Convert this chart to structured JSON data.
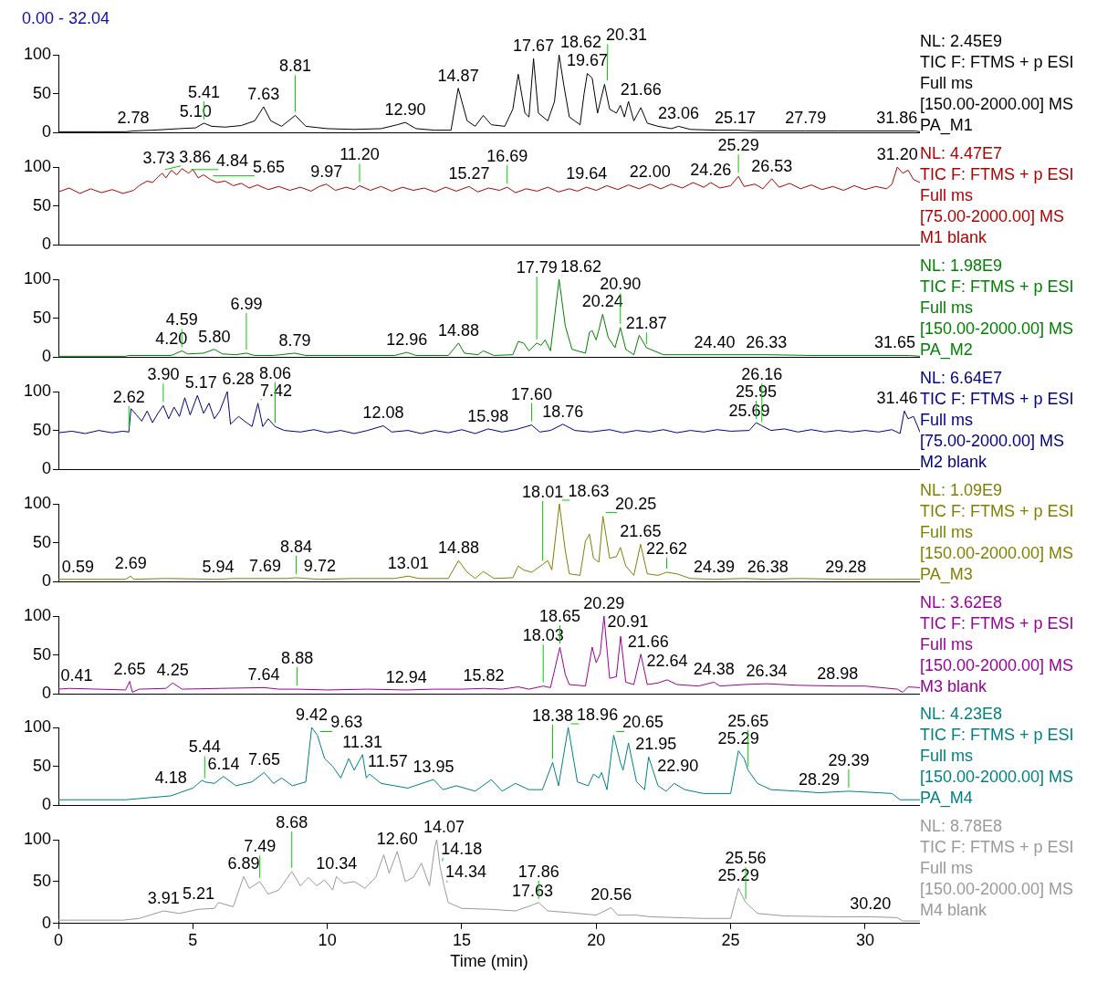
{
  "chart_data": [
    {
      "type": "line",
      "title": "0.00 - 32.04",
      "color": "#000000",
      "xlim": [
        0,
        32.04
      ],
      "ylim": [
        0,
        100
      ],
      "yticks": [
        0,
        50,
        100
      ],
      "tick_labels": "y",
      "x": [
        0,
        1.5,
        2.5,
        2.78,
        3.5,
        4.5,
        5.1,
        5.41,
        5.7,
        6.2,
        6.8,
        7.3,
        7.63,
        7.9,
        8.3,
        8.81,
        9.2,
        10,
        11,
        12,
        12.6,
        12.9,
        13.3,
        14,
        14.6,
        14.87,
        15.2,
        15.5,
        15.8,
        16.1,
        16.6,
        16.9,
        17.1,
        17.35,
        17.5,
        17.67,
        17.85,
        18.2,
        18.45,
        18.62,
        18.8,
        19.0,
        19.2,
        19.4,
        19.55,
        19.67,
        19.85,
        20.05,
        20.31,
        20.5,
        20.75,
        20.9,
        21.05,
        21.2,
        21.4,
        21.66,
        21.9,
        22.3,
        22.8,
        23.06,
        23.5,
        24.5,
        25.17,
        26,
        27.79,
        29,
        30,
        31.86,
        32.04
      ],
      "values": [
        1,
        1,
        1,
        2,
        3,
        5,
        6,
        12,
        8,
        7,
        9,
        15,
        33,
        15,
        8,
        22,
        8,
        5,
        4,
        5,
        10,
        13,
        5,
        3,
        3,
        57,
        15,
        8,
        22,
        10,
        8,
        30,
        75,
        25,
        20,
        95,
        25,
        15,
        40,
        100,
        60,
        20,
        15,
        10,
        50,
        76,
        70,
        25,
        62,
        30,
        25,
        35,
        20,
        40,
        15,
        32,
        12,
        8,
        5,
        8,
        4,
        3,
        3,
        2,
        2,
        2,
        2,
        2,
        1
      ],
      "annotations": [
        "NL: 2.45E9",
        "TIC F: FTMS + p ESI",
        "Full ms",
        "[150.00-2000.00]  MS",
        "PA_M1",
        {
          "text": "2.78",
          "x": 2.78,
          "y": 2
        },
        {
          "text": "5.10",
          "x": 5.1,
          "y": 6
        },
        {
          "text": "5.41",
          "x": 5.41,
          "y": 12
        },
        {
          "text": "7.63",
          "x": 7.63,
          "y": 33
        },
        {
          "text": "8.81",
          "x": 8.81,
          "y": 22
        },
        {
          "text": "12.90",
          "x": 12.9,
          "y": 13
        },
        {
          "text": "14.87",
          "x": 14.87,
          "y": 57
        },
        {
          "text": "17.67",
          "x": 17.67,
          "y": 95
        },
        {
          "text": "18.62",
          "x": 18.62,
          "y": 100
        },
        {
          "text": "19.67",
          "x": 19.67,
          "y": 76
        },
        {
          "text": "20.31",
          "x": 20.31,
          "y": 62
        },
        {
          "text": "21.66",
          "x": 21.66,
          "y": 32
        },
        {
          "text": "23.06",
          "x": 23.06,
          "y": 8
        },
        {
          "text": "25.17",
          "x": 25.17,
          "y": 3
        },
        {
          "text": "27.79",
          "x": 27.79,
          "y": 2
        },
        {
          "text": "31.86",
          "x": 31.86,
          "y": 2
        }
      ]
    },
    {
      "type": "line",
      "color": "#b00000",
      "xlim": [
        0,
        32.04
      ],
      "ylim": [
        0,
        100
      ],
      "yticks": [
        0,
        50,
        100
      ],
      "tick_labels": "y",
      "x": [
        0,
        0.4,
        0.8,
        1.2,
        1.6,
        2.0,
        2.4,
        2.8,
        3.0,
        3.3,
        3.5,
        3.73,
        3.86,
        4.0,
        4.2,
        4.4,
        4.6,
        4.84,
        5.0,
        5.2,
        5.4,
        5.65,
        5.9,
        6.2,
        6.5,
        6.8,
        7.1,
        7.4,
        7.8,
        8.2,
        8.6,
        9.0,
        9.4,
        9.7,
        9.97,
        10.3,
        10.7,
        11.0,
        11.2,
        11.6,
        12.0,
        12.4,
        12.8,
        13.2,
        13.6,
        14.0,
        14.4,
        14.8,
        15.27,
        15.6,
        16.0,
        16.4,
        16.69,
        17.0,
        17.4,
        17.8,
        18.2,
        18.6,
        19.0,
        19.3,
        19.64,
        20.0,
        20.4,
        20.8,
        21.2,
        21.6,
        22.0,
        22.4,
        22.8,
        23.2,
        23.6,
        24.0,
        24.26,
        24.6,
        25.0,
        25.29,
        25.5,
        25.9,
        26.2,
        26.53,
        26.8,
        27.2,
        27.6,
        28.0,
        28.4,
        28.8,
        29.2,
        29.6,
        30.0,
        30.4,
        30.8,
        31.0,
        31.2,
        31.4,
        31.6,
        31.8,
        32.04
      ],
      "values": [
        68,
        73,
        66,
        72,
        67,
        71,
        66,
        70,
        76,
        82,
        80,
        88,
        92,
        86,
        96,
        90,
        98,
        92,
        97,
        86,
        90,
        84,
        80,
        82,
        76,
        79,
        73,
        77,
        71,
        75,
        70,
        74,
        69,
        75,
        78,
        70,
        74,
        71,
        76,
        70,
        75,
        69,
        74,
        70,
        73,
        68,
        74,
        69,
        75,
        68,
        73,
        70,
        74,
        67,
        72,
        69,
        74,
        68,
        72,
        69,
        74,
        70,
        76,
        71,
        77,
        72,
        78,
        72,
        78,
        73,
        80,
        74,
        80,
        73,
        76,
        88,
        75,
        78,
        72,
        85,
        74,
        79,
        72,
        77,
        71,
        75,
        70,
        76,
        71,
        75,
        72,
        78,
        100,
        92,
        96,
        84,
        80
      ],
      "annotations": [
        "NL: 4.47E7",
        "TIC F: FTMS + p ESI",
        "Full ms",
        "[75.00-2000.00]  MS",
        "M1 blank",
        {
          "text": "3.73",
          "x": 3.73,
          "y": 88
        },
        {
          "text": "3.86",
          "x": 3.86,
          "y": 92
        },
        {
          "text": "4.84",
          "x": 4.84,
          "y": 92
        },
        {
          "text": "5.65",
          "x": 5.65,
          "y": 84
        },
        {
          "text": "9.97",
          "x": 9.97,
          "y": 78
        },
        {
          "text": "11.20",
          "x": 11.2,
          "y": 76
        },
        {
          "text": "15.27",
          "x": 15.27,
          "y": 75
        },
        {
          "text": "16.69",
          "x": 16.69,
          "y": 74
        },
        {
          "text": "19.64",
          "x": 19.64,
          "y": 74
        },
        {
          "text": "22.00",
          "x": 22.0,
          "y": 78
        },
        {
          "text": "24.26",
          "x": 24.26,
          "y": 80
        },
        {
          "text": "25.29",
          "x": 25.29,
          "y": 88
        },
        {
          "text": "26.53",
          "x": 26.53,
          "y": 85
        },
        {
          "text": "31.20",
          "x": 31.2,
          "y": 100
        }
      ]
    },
    {
      "type": "line",
      "color": "#008000",
      "xlim": [
        0,
        32.04
      ],
      "ylim": [
        0,
        100
      ],
      "yticks": [
        0,
        50,
        100
      ],
      "tick_labels": "y",
      "x": [
        0,
        2.5,
        2.6,
        4.2,
        4.59,
        4.8,
        5.4,
        5.8,
        6.1,
        6.6,
        6.99,
        7.3,
        8.0,
        8.79,
        9.2,
        10.5,
        12.5,
        12.96,
        13.3,
        14.5,
        14.88,
        15.1,
        15.6,
        15.8,
        16.2,
        16.9,
        17.1,
        17.3,
        17.5,
        17.79,
        17.95,
        18.1,
        18.3,
        18.62,
        18.85,
        19.1,
        19.6,
        19.75,
        19.85,
        20.0,
        20.1,
        20.24,
        20.45,
        20.7,
        20.9,
        21.1,
        21.4,
        21.6,
        21.87,
        22.5,
        24.4,
        26.33,
        28,
        31.65,
        32.04
      ],
      "values": [
        1,
        1,
        2,
        2,
        8,
        4,
        5,
        10,
        4,
        3,
        5,
        2,
        2,
        5,
        2,
        2,
        2,
        6,
        2,
        2,
        18,
        5,
        3,
        8,
        2,
        3,
        20,
        18,
        8,
        18,
        15,
        22,
        8,
        100,
        40,
        10,
        5,
        32,
        34,
        22,
        35,
        55,
        25,
        12,
        38,
        10,
        3,
        28,
        12,
        3,
        3,
        3,
        2,
        2,
        1
      ],
      "annotations": [
        "NL: 1.98E9",
        "TIC F: FTMS + p ESI",
        "Full ms",
        "[150.00-2000.00]  MS",
        "PA_M2",
        {
          "text": "4.20",
          "x": 4.2,
          "y": 2
        },
        {
          "text": "4.59",
          "x": 4.59,
          "y": 8
        },
        {
          "text": "5.80",
          "x": 5.8,
          "y": 10
        },
        {
          "text": "6.99",
          "x": 6.99,
          "y": 5
        },
        {
          "text": "8.79",
          "x": 8.79,
          "y": 5
        },
        {
          "text": "12.96",
          "x": 12.96,
          "y": 6
        },
        {
          "text": "14.88",
          "x": 14.88,
          "y": 18
        },
        {
          "text": "17.79",
          "x": 17.79,
          "y": 18
        },
        {
          "text": "18.62",
          "x": 18.62,
          "y": 100
        },
        {
          "text": "20.24",
          "x": 20.24,
          "y": 55
        },
        {
          "text": "20.90",
          "x": 20.9,
          "y": 38
        },
        {
          "text": "21.87",
          "x": 21.87,
          "y": 12
        },
        {
          "text": "24.40",
          "x": 24.4,
          "y": 3
        },
        {
          "text": "26.33",
          "x": 26.33,
          "y": 3
        },
        {
          "text": "31.65",
          "x": 31.65,
          "y": 2
        }
      ]
    },
    {
      "type": "line",
      "color": "#000080",
      "xlim": [
        0,
        32.04
      ],
      "ylim": [
        0,
        100
      ],
      "yticks": [
        0,
        50,
        100
      ],
      "tick_labels": "y",
      "x": [
        0,
        0.5,
        1.0,
        1.5,
        2.0,
        2.4,
        2.62,
        2.7,
        2.9,
        3.1,
        3.3,
        3.5,
        3.7,
        3.9,
        4.1,
        4.3,
        4.5,
        4.7,
        4.9,
        5.17,
        5.4,
        5.6,
        5.8,
        6.0,
        6.28,
        6.4,
        6.7,
        7.0,
        7.2,
        7.42,
        7.6,
        7.8,
        8.06,
        8.4,
        9.0,
        9.5,
        10.0,
        10.5,
        11.0,
        11.5,
        12.08,
        12.4,
        13.0,
        13.5,
        14.0,
        14.5,
        15.0,
        15.5,
        15.98,
        16.5,
        17.0,
        17.6,
        17.9,
        18.3,
        18.76,
        19.2,
        19.8,
        20.5,
        21.0,
        21.5,
        22.0,
        22.5,
        23.0,
        23.5,
        24.0,
        24.5,
        25.0,
        25.69,
        25.95,
        26.16,
        26.5,
        27.0,
        27.5,
        28.0,
        28.5,
        29.0,
        29.5,
        30.0,
        30.5,
        31.0,
        31.3,
        31.46,
        31.6,
        31.8,
        32.04
      ],
      "values": [
        47,
        49,
        46,
        50,
        47,
        49,
        48,
        78,
        70,
        62,
        75,
        60,
        72,
        82,
        65,
        80,
        68,
        92,
        70,
        95,
        72,
        85,
        65,
        75,
        100,
        58,
        68,
        60,
        55,
        85,
        55,
        65,
        55,
        50,
        48,
        51,
        47,
        50,
        46,
        50,
        56,
        48,
        50,
        46,
        50,
        47,
        51,
        46,
        52,
        48,
        51,
        57,
        48,
        50,
        58,
        50,
        48,
        51,
        47,
        50,
        48,
        51,
        47,
        50,
        48,
        51,
        49,
        50,
        60,
        56,
        50,
        52,
        48,
        51,
        48,
        50,
        48,
        50,
        48,
        51,
        46,
        75,
        65,
        68,
        48
      ],
      "annotations": [
        "NL: 6.64E7",
        "TIC F: FTMS + p ESI",
        "Full ms",
        "[75.00-2000.00]  MS",
        "M2 blank",
        {
          "text": "2.62",
          "x": 2.62,
          "y": 48
        },
        {
          "text": "3.90",
          "x": 3.9,
          "y": 82
        },
        {
          "text": "5.17",
          "x": 5.17,
          "y": 95
        },
        {
          "text": "6.28",
          "x": 6.28,
          "y": 100
        },
        {
          "text": "7.42",
          "x": 7.42,
          "y": 85
        },
        {
          "text": "8.06",
          "x": 8.06,
          "y": 55
        },
        {
          "text": "12.08",
          "x": 12.08,
          "y": 56
        },
        {
          "text": "15.98",
          "x": 15.98,
          "y": 52
        },
        {
          "text": "17.60",
          "x": 17.6,
          "y": 57
        },
        {
          "text": "18.76",
          "x": 18.76,
          "y": 58
        },
        {
          "text": "25.69",
          "x": 25.69,
          "y": 50
        },
        {
          "text": "25.95",
          "x": 25.95,
          "y": 60
        },
        {
          "text": "26.16",
          "x": 26.16,
          "y": 56
        },
        {
          "text": "31.46",
          "x": 31.46,
          "y": 75
        }
      ]
    },
    {
      "type": "line",
      "color": "#808000",
      "xlim": [
        0,
        32.04
      ],
      "ylim": [
        0,
        100
      ],
      "yticks": [
        0,
        50,
        100
      ],
      "tick_labels": "y",
      "x": [
        0,
        0.59,
        1.5,
        2.5,
        2.69,
        2.8,
        4,
        5.94,
        6.5,
        7.69,
        8.5,
        8.84,
        9.2,
        9.72,
        11,
        12.5,
        13.01,
        13.4,
        14.5,
        14.88,
        15.2,
        15.5,
        15.8,
        16.2,
        16.9,
        17.1,
        17.3,
        17.6,
        18.01,
        18.2,
        18.35,
        18.63,
        18.85,
        19.0,
        19.4,
        19.6,
        19.75,
        19.9,
        20.1,
        20.25,
        20.5,
        20.75,
        20.9,
        21.1,
        21.4,
        21.65,
        21.9,
        22.3,
        22.62,
        23.0,
        23.5,
        24.39,
        25.5,
        26.38,
        27.5,
        29.28,
        31,
        32.04
      ],
      "values": [
        3,
        3,
        3,
        3,
        7,
        3,
        4,
        3,
        4,
        4,
        4,
        5,
        4,
        3,
        4,
        4,
        7,
        4,
        4,
        27,
        12,
        4,
        13,
        4,
        5,
        20,
        15,
        12,
        22,
        27,
        15,
        100,
        40,
        10,
        8,
        52,
        61,
        30,
        25,
        84,
        30,
        32,
        44,
        20,
        8,
        48,
        10,
        8,
        12,
        10,
        4,
        3,
        4,
        3,
        4,
        3,
        3,
        3
      ],
      "annotations": [
        "NL: 1.09E9",
        "TIC F: FTMS + p ESI",
        "Full ms",
        "[150.00-2000.00]  MS",
        "PA_M3",
        {
          "text": "0.59",
          "x": 0.59,
          "y": 3
        },
        {
          "text": "2.69",
          "x": 2.69,
          "y": 7
        },
        {
          "text": "5.94",
          "x": 5.94,
          "y": 3
        },
        {
          "text": "7.69",
          "x": 7.69,
          "y": 4
        },
        {
          "text": "8.84",
          "x": 8.84,
          "y": 5
        },
        {
          "text": "9.72",
          "x": 9.72,
          "y": 3
        },
        {
          "text": "13.01",
          "x": 13.01,
          "y": 7
        },
        {
          "text": "14.88",
          "x": 14.88,
          "y": 27
        },
        {
          "text": "18.01",
          "x": 18.01,
          "y": 22
        },
        {
          "text": "18.63",
          "x": 18.63,
          "y": 100
        },
        {
          "text": "20.25",
          "x": 20.25,
          "y": 84
        },
        {
          "text": "21.65",
          "x": 21.65,
          "y": 48
        },
        {
          "text": "22.62",
          "x": 22.62,
          "y": 12
        },
        {
          "text": "24.39",
          "x": 24.39,
          "y": 3
        },
        {
          "text": "26.38",
          "x": 26.38,
          "y": 3
        },
        {
          "text": "29.28",
          "x": 29.28,
          "y": 3
        }
      ]
    },
    {
      "type": "line",
      "color": "#990099",
      "xlim": [
        0,
        32.04
      ],
      "ylim": [
        0,
        100
      ],
      "yticks": [
        0,
        50,
        100
      ],
      "tick_labels": "y",
      "x": [
        0,
        0.41,
        1.5,
        2.5,
        2.65,
        2.75,
        3.0,
        4.0,
        4.25,
        4.6,
        6,
        7.64,
        8.2,
        8.88,
        10,
        11.5,
        12.94,
        14,
        15,
        15.82,
        16.5,
        17.1,
        17.5,
        18.03,
        18.3,
        18.65,
        18.85,
        19.0,
        19.6,
        19.85,
        20.0,
        20.15,
        20.29,
        20.5,
        20.75,
        20.91,
        21.1,
        21.4,
        21.66,
        21.9,
        22.3,
        22.64,
        23.0,
        23.8,
        24.38,
        24.6,
        25.5,
        26.34,
        27.5,
        28.98,
        30,
        31.2,
        31.4,
        31.6,
        32.04
      ],
      "values": [
        6,
        7,
        6,
        5,
        16,
        2,
        6,
        7,
        14,
        6,
        7,
        8,
        6,
        6,
        5,
        6,
        5,
        6,
        6,
        7,
        6,
        9,
        6,
        10,
        8,
        60,
        25,
        12,
        10,
        60,
        40,
        52,
        100,
        20,
        22,
        74,
        15,
        12,
        51,
        12,
        14,
        18,
        12,
        10,
        15,
        10,
        12,
        13,
        11,
        10,
        10,
        6,
        2,
        9,
        8
      ],
      "annotations": [
        "NL: 3.62E8",
        "TIC F: FTMS + p ESI",
        "Full ms",
        "[150.00-2000.00]  MS",
        "M3 blank",
        {
          "text": "0.41",
          "x": 0.41,
          "y": 7
        },
        {
          "text": "2.65",
          "x": 2.65,
          "y": 16
        },
        {
          "text": "4.25",
          "x": 4.25,
          "y": 14
        },
        {
          "text": "7.64",
          "x": 7.64,
          "y": 8
        },
        {
          "text": "8.88",
          "x": 8.88,
          "y": 6
        },
        {
          "text": "12.94",
          "x": 12.94,
          "y": 5
        },
        {
          "text": "15.82",
          "x": 15.82,
          "y": 7
        },
        {
          "text": "18.03",
          "x": 18.03,
          "y": 10
        },
        {
          "text": "18.65",
          "x": 18.65,
          "y": 60
        },
        {
          "text": "20.29",
          "x": 20.29,
          "y": 100
        },
        {
          "text": "20.91",
          "x": 20.91,
          "y": 74
        },
        {
          "text": "21.66",
          "x": 21.66,
          "y": 51
        },
        {
          "text": "22.64",
          "x": 22.64,
          "y": 18
        },
        {
          "text": "24.38",
          "x": 24.38,
          "y": 15
        },
        {
          "text": "26.34",
          "x": 26.34,
          "y": 13
        },
        {
          "text": "28.98",
          "x": 28.98,
          "y": 10
        }
      ]
    },
    {
      "type": "line",
      "color": "#008080",
      "xlim": [
        0,
        32.04
      ],
      "ylim": [
        0,
        100
      ],
      "yticks": [
        0,
        50,
        100
      ],
      "tick_labels": "y",
      "x": [
        0,
        2.5,
        3.5,
        4.18,
        5.0,
        5.34,
        5.44,
        5.8,
        6.14,
        6.6,
        7.2,
        7.65,
        8.0,
        8.3,
        8.7,
        9.2,
        9.42,
        9.63,
        9.9,
        10.2,
        10.5,
        10.8,
        11.0,
        11.31,
        11.45,
        11.57,
        12.0,
        13.0,
        13.95,
        14.3,
        14.8,
        15.5,
        16.1,
        16.5,
        17.0,
        17.5,
        18.0,
        18.38,
        18.6,
        18.96,
        19.3,
        19.7,
        19.9,
        20.1,
        20.2,
        20.4,
        20.65,
        20.9,
        21.0,
        21.2,
        21.5,
        21.8,
        21.95,
        22.3,
        22.6,
        22.9,
        23.3,
        24.0,
        25.0,
        25.29,
        25.5,
        25.65,
        26.0,
        26.5,
        27.5,
        28.29,
        29.39,
        30.5,
        31.0,
        31.3,
        32.04
      ],
      "values": [
        7,
        7,
        10,
        12,
        22,
        32,
        30,
        28,
        37,
        25,
        30,
        42,
        28,
        35,
        25,
        30,
        100,
        90,
        60,
        50,
        35,
        60,
        45,
        65,
        35,
        40,
        28,
        22,
        33,
        20,
        25,
        18,
        33,
        18,
        28,
        20,
        20,
        55,
        25,
        100,
        30,
        25,
        40,
        35,
        42,
        20,
        90,
        55,
        45,
        80,
        30,
        20,
        62,
        25,
        18,
        28,
        20,
        15,
        15,
        70,
        60,
        45,
        28,
        20,
        18,
        16,
        18,
        16,
        15,
        7,
        7
      ],
      "annotations": [
        "NL: 4.23E8",
        "TIC F: FTMS + p ESI",
        "Full ms",
        "[150.00-2000.00]  MS",
        "PA_M4",
        {
          "text": "4.18",
          "x": 4.18,
          "y": 12
        },
        {
          "text": "5.44",
          "x": 5.44,
          "y": 30
        },
        {
          "text": "6.14",
          "x": 6.14,
          "y": 37
        },
        {
          "text": "7.65",
          "x": 7.65,
          "y": 42
        },
        {
          "text": "9.42",
          "x": 9.42,
          "y": 100
        },
        {
          "text": "9.63",
          "x": 9.63,
          "y": 90
        },
        {
          "text": "11.31",
          "x": 11.31,
          "y": 65
        },
        {
          "text": "11.57",
          "x": 11.57,
          "y": 40
        },
        {
          "text": "13.95",
          "x": 13.95,
          "y": 33
        },
        {
          "text": "18.38",
          "x": 18.38,
          "y": 55
        },
        {
          "text": "18.96",
          "x": 18.96,
          "y": 100
        },
        {
          "text": "20.65",
          "x": 20.65,
          "y": 90
        },
        {
          "text": "21.95",
          "x": 21.95,
          "y": 62
        },
        {
          "text": "22.90",
          "x": 22.9,
          "y": 28
        },
        {
          "text": "25.29",
          "x": 25.29,
          "y": 70
        },
        {
          "text": "25.65",
          "x": 25.65,
          "y": 45
        },
        {
          "text": "28.29",
          "x": 28.29,
          "y": 16
        },
        {
          "text": "29.39",
          "x": 29.39,
          "y": 18
        }
      ]
    },
    {
      "type": "line",
      "color": "#999999",
      "xlim": [
        0,
        32.04
      ],
      "ylim": [
        0,
        100
      ],
      "xticks": [
        0,
        5,
        10,
        15,
        20,
        25,
        30
      ],
      "yticks": [
        0,
        50,
        100
      ],
      "xlabel": "Time (min)",
      "x": [
        0,
        2.4,
        3.0,
        3.91,
        4.5,
        5.21,
        5.8,
        5.95,
        6.5,
        6.89,
        7.1,
        7.49,
        7.8,
        8.2,
        8.68,
        9.0,
        9.3,
        9.6,
        9.9,
        10.2,
        10.34,
        10.6,
        11.0,
        11.4,
        11.8,
        12.1,
        12.3,
        12.6,
        12.9,
        13.2,
        13.5,
        13.8,
        14.0,
        14.07,
        14.18,
        14.34,
        14.5,
        15.0,
        16.0,
        17.0,
        17.63,
        17.86,
        18.2,
        19.0,
        20.0,
        20.56,
        20.8,
        21.5,
        22.0,
        24.0,
        25.0,
        25.29,
        25.56,
        26.0,
        27.0,
        29.0,
        30.2,
        31.2,
        31.4,
        32.04
      ],
      "values": [
        4,
        4,
        6,
        15,
        12,
        17,
        18,
        25,
        20,
        56,
        42,
        50,
        35,
        40,
        62,
        45,
        55,
        45,
        52,
        40,
        56,
        48,
        50,
        42,
        55,
        82,
        60,
        86,
        50,
        55,
        72,
        45,
        92,
        100,
        70,
        45,
        25,
        18,
        17,
        15,
        22,
        25,
        15,
        13,
        10,
        19,
        10,
        10,
        8,
        6,
        6,
        42,
        25,
        12,
        9,
        8,
        8,
        7,
        3,
        3
      ],
      "annotations": [
        "NL: 8.78E8",
        "TIC F: FTMS + p ESI",
        "Full ms",
        "[150.00-2000.00]  MS",
        "M4 blank",
        {
          "text": "3.91",
          "x": 3.91,
          "y": 15
        },
        {
          "text": "5.21",
          "x": 5.21,
          "y": 17
        },
        {
          "text": "6.89",
          "x": 6.89,
          "y": 56
        },
        {
          "text": "7.49",
          "x": 7.49,
          "y": 50
        },
        {
          "text": "8.68",
          "x": 8.68,
          "y": 62
        },
        {
          "text": "10.34",
          "x": 10.34,
          "y": 56
        },
        {
          "text": "12.60",
          "x": 12.6,
          "y": 86
        },
        {
          "text": "14.07",
          "x": 14.07,
          "y": 100
        },
        {
          "text": "14.18",
          "x": 14.18,
          "y": 70
        },
        {
          "text": "14.34",
          "x": 14.34,
          "y": 45
        },
        {
          "text": "17.63",
          "x": 17.63,
          "y": 22
        },
        {
          "text": "17.86",
          "x": 17.86,
          "y": 25
        },
        {
          "text": "20.56",
          "x": 20.56,
          "y": 19
        },
        {
          "text": "25.29",
          "x": 25.29,
          "y": 42
        },
        {
          "text": "25.56",
          "x": 25.56,
          "y": 25
        },
        {
          "text": "30.20",
          "x": 30.2,
          "y": 8
        }
      ]
    }
  ]
}
